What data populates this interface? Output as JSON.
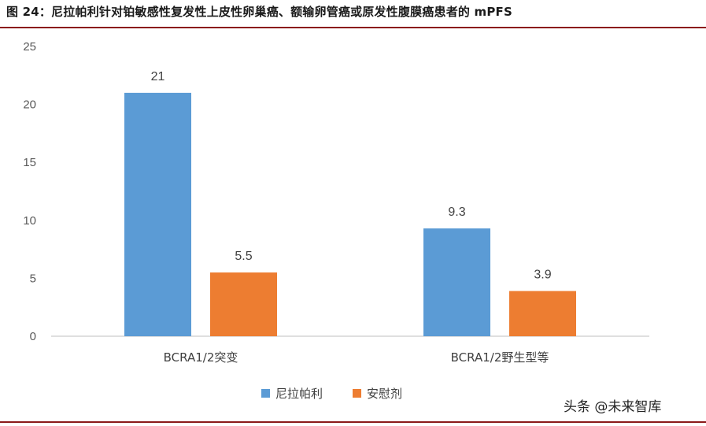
{
  "figure": {
    "title": "图 24：尼拉帕利针对铂敏感性复发性上皮性卵巢癌、额输卵管癌或原发性腹膜癌患者的 mPFS",
    "watermark": "头条 @未来智库"
  },
  "colors": {
    "rule": "#8b1a1a",
    "axis": "#bfbfbf"
  },
  "chart_data": {
    "type": "bar",
    "title": "",
    "xlabel": "",
    "ylabel": "",
    "categories": [
      "BCRA1/2突变",
      "BCRA1/2野生型等"
    ],
    "series": [
      {
        "name": "尼拉帕利",
        "values": [
          21,
          9.3
        ],
        "labels": [
          "21",
          "9.3"
        ],
        "color": "#5b9bd5"
      },
      {
        "name": "安慰剂",
        "values": [
          5.5,
          3.9
        ],
        "labels": [
          "5.5",
          "3.9"
        ],
        "color": "#ed7d31"
      }
    ],
    "ylim": [
      0,
      25
    ],
    "yticks": [
      0,
      5,
      10,
      15,
      20,
      25
    ],
    "grid": false,
    "legend": "bottom"
  }
}
